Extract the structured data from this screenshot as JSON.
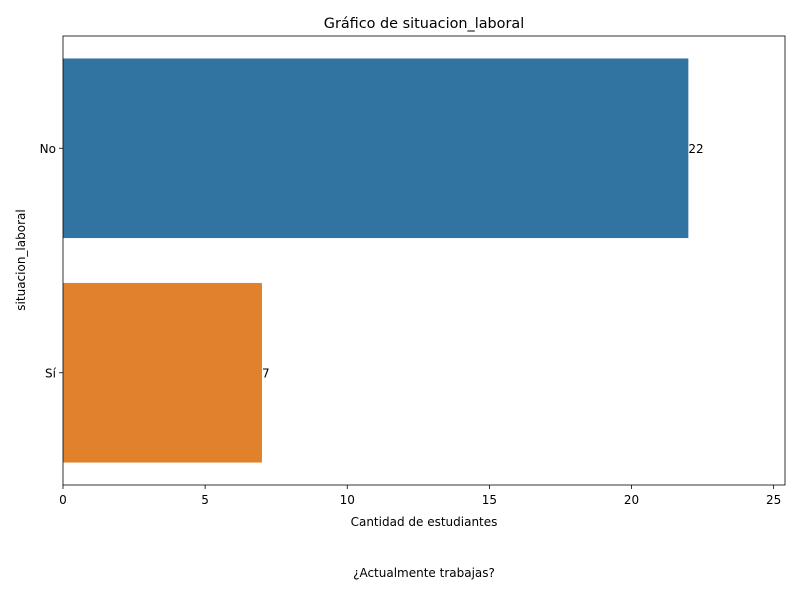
{
  "chart_data": {
    "type": "bar",
    "orientation": "horizontal",
    "title": "Gráfico de situacion_laboral",
    "xlabel": "Cantidad de estudiantes",
    "ylabel": "situacion_laboral",
    "categories": [
      "No",
      "Sí"
    ],
    "values": [
      22,
      7
    ],
    "data_labels": [
      "22",
      "7"
    ],
    "colors": [
      "#3274a1",
      "#e1812c"
    ],
    "xlim": [
      0,
      25.4
    ],
    "xticks": [
      0,
      5,
      10,
      15,
      20,
      25
    ],
    "grid": false
  },
  "caption": "¿Actualmente trabajas?"
}
